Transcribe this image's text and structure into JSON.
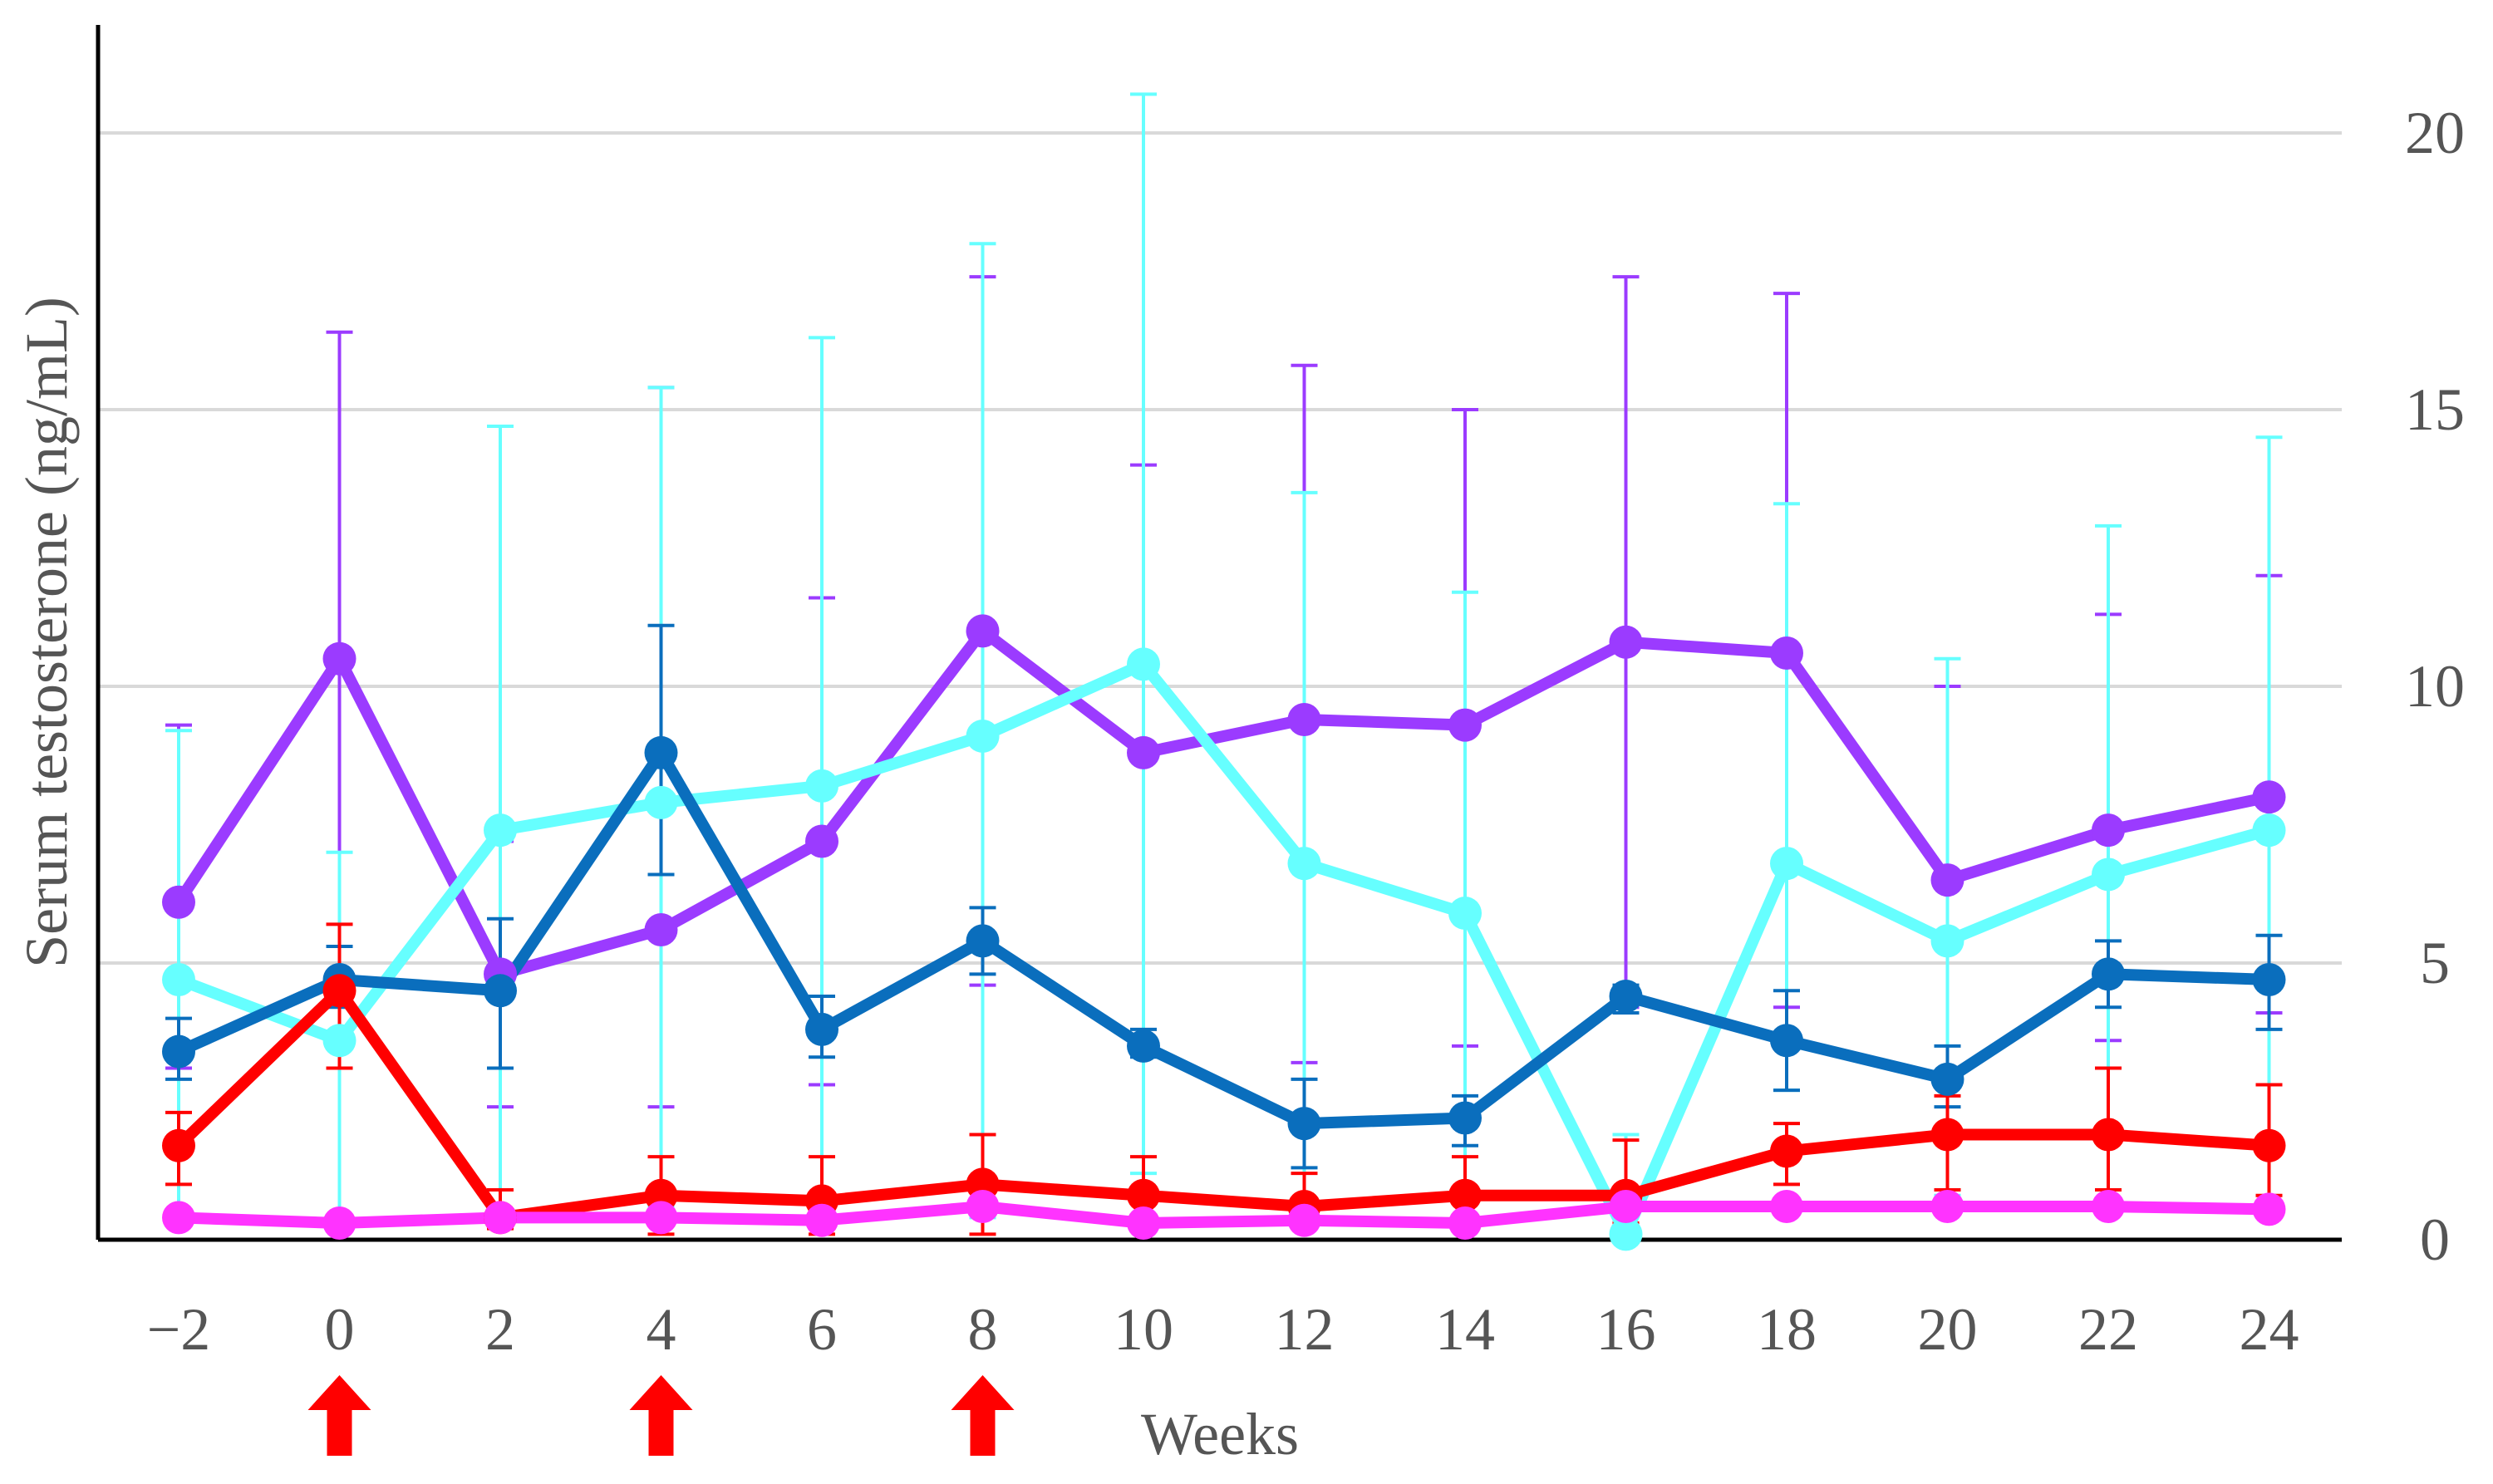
{
  "chart_data": {
    "type": "line",
    "title": "",
    "xlabel": "Weeks",
    "ylabel": "Serum testosterone (ng/mL)",
    "x": [
      -2,
      0,
      2,
      4,
      6,
      8,
      10,
      12,
      14,
      16,
      18,
      20,
      22,
      24
    ],
    "x_tick_labels": [
      "−2",
      "0",
      "2",
      "4",
      "6",
      "8",
      "10",
      "12",
      "14",
      "16",
      "18",
      "20",
      "22",
      "24"
    ],
    "ylim": [
      0,
      22
    ],
    "y_ticks": [
      0,
      5,
      10,
      15,
      20
    ],
    "y_tick_labels": [
      "0",
      "5",
      "10",
      "15",
      "20"
    ],
    "y_axis_side": "right",
    "grid": true,
    "legend": "none",
    "dose_markers": {
      "weeks": [
        0,
        4,
        8
      ],
      "color": "#ff0000",
      "description": "red upward arrows below the x-axis"
    },
    "series": [
      {
        "name": "purple",
        "color": "#9b3bff",
        "values": [
          6.1,
          10.5,
          4.8,
          5.6,
          7.2,
          11.0,
          8.8,
          9.4,
          9.3,
          10.8,
          10.6,
          6.5,
          7.4,
          8.0
        ],
        "err_upper": [
          9.3,
          16.4,
          7.2,
          15.4,
          11.6,
          17.4,
          14.0,
          15.8,
          15.0,
          17.4,
          17.1,
          10.0,
          11.3,
          12.0
        ],
        "err_lower": [
          3.1,
          4.6,
          2.4,
          2.4,
          2.8,
          4.6,
          3.6,
          3.2,
          3.5,
          4.2,
          4.2,
          3.0,
          3.6,
          4.1
        ]
      },
      {
        "name": "cyan",
        "color": "#66ffff",
        "values": [
          4.7,
          3.6,
          7.4,
          7.9,
          8.2,
          9.1,
          10.4,
          6.8,
          5.9,
          0.1,
          6.8,
          5.4,
          6.6,
          7.4
        ],
        "err_upper": [
          9.2,
          7.0,
          14.7,
          15.4,
          16.3,
          18.0,
          20.7,
          13.5,
          11.7,
          1.9,
          13.3,
          10.5,
          12.9,
          14.5
        ],
        "err_lower": [
          0.4,
          0.2,
          0.4,
          0.6,
          0.3,
          0.4,
          1.2,
          0.3,
          0.2,
          0.0,
          2.7,
          0.8,
          0.5,
          0.6
        ]
      },
      {
        "name": "blue",
        "color": "#0a6ebd",
        "values": [
          3.4,
          4.7,
          4.5,
          8.8,
          3.8,
          5.4,
          3.5,
          2.1,
          2.2,
          4.4,
          3.6,
          2.9,
          4.8,
          4.7
        ],
        "err_upper": [
          4.0,
          5.3,
          5.8,
          11.1,
          4.4,
          6.0,
          3.8,
          2.9,
          2.6,
          4.6,
          4.5,
          3.5,
          5.4,
          5.5
        ],
        "err_lower": [
          2.9,
          4.2,
          3.1,
          6.6,
          3.3,
          4.8,
          3.3,
          1.3,
          1.7,
          4.1,
          2.7,
          2.4,
          4.2,
          3.8
        ]
      },
      {
        "name": "red",
        "color": "#ff0000",
        "values": [
          1.7,
          4.5,
          0.4,
          0.8,
          0.7,
          1.0,
          0.8,
          0.6,
          0.8,
          0.8,
          1.6,
          1.9,
          1.9,
          1.7
        ],
        "err_upper": [
          2.3,
          5.7,
          0.9,
          1.5,
          1.5,
          1.9,
          1.5,
          1.2,
          1.5,
          1.8,
          2.1,
          2.6,
          3.1,
          2.8
        ],
        "err_lower": [
          1.0,
          3.1,
          0.2,
          0.1,
          0.1,
          0.1,
          0.2,
          0.3,
          0.3,
          0.3,
          1.0,
          0.9,
          0.9,
          0.8
        ]
      },
      {
        "name": "magenta",
        "color": "#ff33ff",
        "values": [
          0.4,
          0.3,
          0.4,
          0.4,
          0.35,
          0.6,
          0.3,
          0.35,
          0.3,
          0.6,
          0.6,
          0.6,
          0.6,
          0.55
        ],
        "err_upper": [
          0.5,
          0.4,
          0.5,
          0.5,
          0.45,
          0.7,
          0.4,
          0.45,
          0.4,
          0.7,
          0.7,
          0.7,
          0.7,
          0.65
        ],
        "err_lower": [
          0.3,
          0.2,
          0.3,
          0.3,
          0.25,
          0.5,
          0.2,
          0.25,
          0.2,
          0.5,
          0.5,
          0.5,
          0.5,
          0.45
        ]
      }
    ]
  }
}
